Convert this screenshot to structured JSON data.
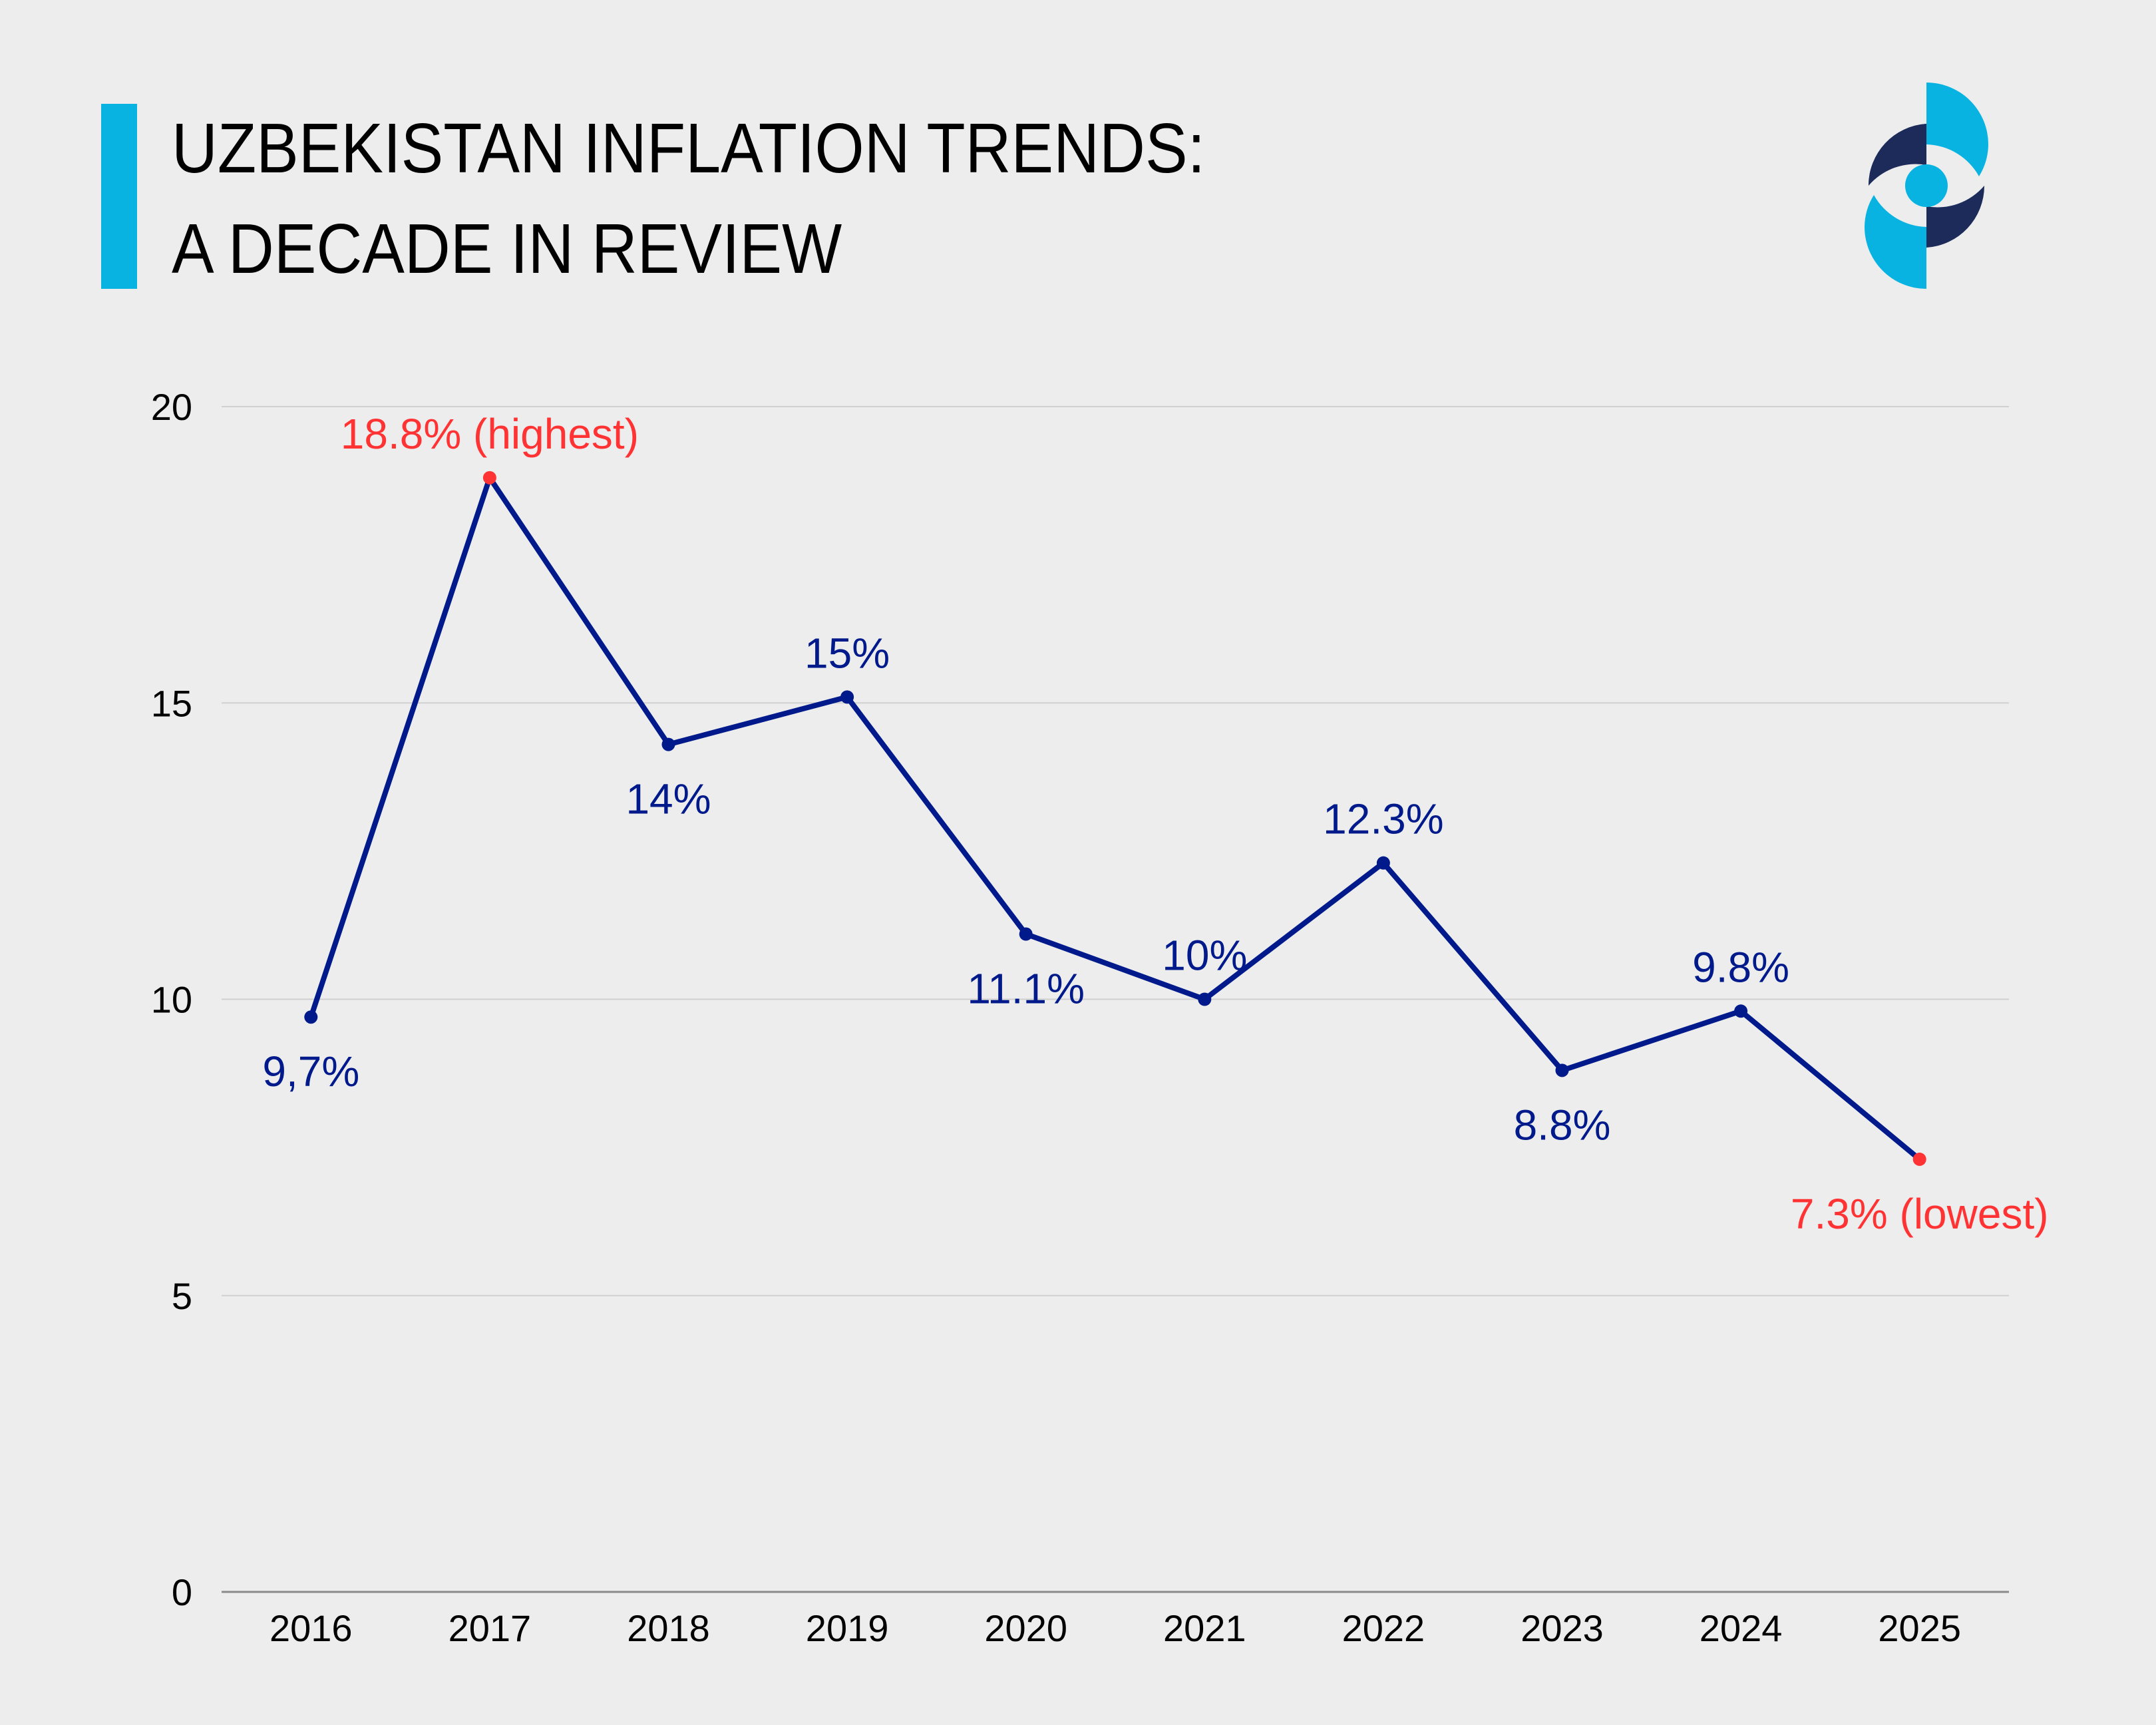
{
  "header": {
    "title_line1": "UZBEKISTAN INFLATION TRENDS:",
    "title_line2": "A DECADE IN REVIEW",
    "logo": "eye-swirl-logo"
  },
  "colors": {
    "accent": "#08B3E2",
    "logo_dark": "#1C2B5A",
    "line": "#001A8C",
    "highlight": "#FF3333",
    "grid": "#D0D0D0",
    "axis": "#8A8A8A",
    "background": "#EDEDED"
  },
  "chart_data": {
    "type": "line",
    "title": "UZBEKISTAN INFLATION TRENDS: A DECADE IN REVIEW",
    "xlabel": "",
    "ylabel": "",
    "categories": [
      "2016",
      "2017",
      "2018",
      "2019",
      "2020",
      "2021",
      "2022",
      "2023",
      "2024",
      "2025"
    ],
    "series": [
      {
        "name": "Inflation",
        "values": [
          9.7,
          18.8,
          14.3,
          15.1,
          11.1,
          10.0,
          12.3,
          8.8,
          9.8,
          7.3
        ],
        "labels": [
          "9,7%",
          "18.8% (highest)",
          "14%",
          "15%",
          "11.1%",
          "10%",
          "12.3%",
          "8.8%",
          "9.8%",
          "7.3% (lowest)"
        ],
        "label_position": [
          "below",
          "above",
          "below",
          "above",
          "below",
          "above",
          "above",
          "below",
          "above",
          "below"
        ],
        "highlight": [
          false,
          true,
          false,
          false,
          false,
          false,
          false,
          false,
          false,
          true
        ]
      }
    ],
    "ylim": [
      0,
      20
    ],
    "yticks": [
      "0",
      "5",
      "10",
      "15",
      "20"
    ],
    "ytick_values": [
      0,
      5,
      10,
      15,
      20
    ],
    "grid": true,
    "legend": "none"
  }
}
